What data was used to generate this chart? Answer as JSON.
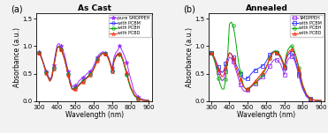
{
  "title_a": "As Cast",
  "title_b": "Annealed",
  "xlabel": "Wavelength (nm)",
  "ylabel": "Absorbance (a.u.)",
  "xlim": [
    285,
    920
  ],
  "ylim": [
    0,
    1.6
  ],
  "yticks": [
    0.0,
    0.5,
    1.0,
    1.5
  ],
  "xticks": [
    300,
    400,
    500,
    600,
    700,
    800,
    900
  ],
  "legend_a": [
    "pure SMDPPEH",
    "with PCBM",
    "with PCBH",
    "with PCBD"
  ],
  "legend_b": [
    "SMDPPEH",
    "with PCBM",
    "with PCBH",
    "with PCBD"
  ],
  "colors_a": [
    "#9B30FF",
    "#3333FF",
    "#00AA00",
    "#FF2200"
  ],
  "colors_b": [
    "#9B30FF",
    "#3333FF",
    "#00AA00",
    "#FF2200"
  ],
  "markers_a": [
    "*",
    "o",
    "o",
    "^"
  ],
  "markers_b": [
    "s",
    "s",
    "o",
    "^"
  ],
  "fillstyle_a": [
    "full",
    "none",
    "none",
    "none"
  ],
  "fillstyle_b": [
    "none",
    "none",
    "none",
    "none"
  ],
  "wl": [
    300,
    310,
    320,
    330,
    340,
    350,
    360,
    370,
    380,
    390,
    400,
    410,
    420,
    430,
    440,
    450,
    460,
    470,
    480,
    490,
    500,
    510,
    520,
    530,
    540,
    550,
    560,
    570,
    580,
    590,
    600,
    610,
    620,
    630,
    640,
    650,
    660,
    670,
    680,
    690,
    700,
    710,
    720,
    730,
    740,
    750,
    760,
    770,
    780,
    790,
    800,
    820,
    840,
    860,
    880,
    900
  ],
  "a_pure": [
    0.9,
    0.85,
    0.75,
    0.65,
    0.55,
    0.47,
    0.4,
    0.45,
    0.65,
    0.85,
    1.02,
    1.05,
    1.0,
    0.93,
    0.85,
    0.7,
    0.55,
    0.38,
    0.28,
    0.26,
    0.28,
    0.32,
    0.37,
    0.4,
    0.43,
    0.46,
    0.49,
    0.52,
    0.55,
    0.58,
    0.65,
    0.73,
    0.8,
    0.86,
    0.88,
    0.9,
    0.88,
    0.85,
    0.8,
    0.7,
    0.6,
    0.8,
    0.88,
    0.92,
    1.0,
    0.95,
    0.88,
    0.8,
    0.7,
    0.55,
    0.42,
    0.18,
    0.08,
    0.04,
    0.02,
    0.01
  ],
  "a_pcbm": [
    0.88,
    0.82,
    0.74,
    0.63,
    0.52,
    0.44,
    0.37,
    0.42,
    0.6,
    0.8,
    0.98,
    1.0,
    0.95,
    0.88,
    0.78,
    0.64,
    0.5,
    0.34,
    0.24,
    0.22,
    0.24,
    0.27,
    0.31,
    0.34,
    0.37,
    0.4,
    0.43,
    0.46,
    0.5,
    0.54,
    0.6,
    0.68,
    0.76,
    0.82,
    0.86,
    0.88,
    0.87,
    0.84,
    0.78,
    0.68,
    0.56,
    0.74,
    0.82,
    0.86,
    0.87,
    0.83,
    0.74,
    0.62,
    0.5,
    0.37,
    0.26,
    0.12,
    0.05,
    0.02,
    0.01,
    0.01
  ],
  "a_pcbh": [
    0.88,
    0.82,
    0.74,
    0.63,
    0.52,
    0.44,
    0.37,
    0.42,
    0.6,
    0.8,
    0.97,
    1.0,
    0.95,
    0.87,
    0.77,
    0.63,
    0.49,
    0.33,
    0.23,
    0.21,
    0.23,
    0.26,
    0.3,
    0.33,
    0.36,
    0.39,
    0.42,
    0.45,
    0.49,
    0.53,
    0.59,
    0.67,
    0.75,
    0.81,
    0.85,
    0.87,
    0.86,
    0.83,
    0.77,
    0.67,
    0.55,
    0.72,
    0.8,
    0.84,
    0.85,
    0.81,
    0.72,
    0.6,
    0.48,
    0.35,
    0.24,
    0.1,
    0.04,
    0.02,
    0.01,
    0.01
  ],
  "a_pcbd": [
    0.88,
    0.82,
    0.73,
    0.62,
    0.51,
    0.43,
    0.36,
    0.41,
    0.59,
    0.79,
    0.96,
    0.99,
    0.94,
    0.86,
    0.76,
    0.62,
    0.48,
    0.32,
    0.22,
    0.2,
    0.22,
    0.25,
    0.29,
    0.32,
    0.35,
    0.38,
    0.41,
    0.44,
    0.48,
    0.52,
    0.58,
    0.66,
    0.74,
    0.8,
    0.84,
    0.87,
    0.86,
    0.83,
    0.77,
    0.67,
    0.55,
    0.72,
    0.81,
    0.86,
    0.87,
    0.84,
    0.75,
    0.63,
    0.52,
    0.38,
    0.27,
    0.12,
    0.05,
    0.02,
    0.01,
    0.01
  ],
  "b_pure": [
    0.88,
    0.82,
    0.74,
    0.63,
    0.52,
    0.44,
    0.37,
    0.4,
    0.55,
    0.7,
    0.8,
    0.78,
    0.72,
    0.62,
    0.52,
    0.4,
    0.3,
    0.22,
    0.18,
    0.18,
    0.2,
    0.23,
    0.26,
    0.29,
    0.32,
    0.35,
    0.38,
    0.41,
    0.44,
    0.47,
    0.52,
    0.58,
    0.64,
    0.7,
    0.74,
    0.76,
    0.75,
    0.72,
    0.67,
    0.58,
    0.48,
    0.66,
    0.76,
    0.8,
    0.82,
    0.78,
    0.7,
    0.58,
    0.46,
    0.32,
    0.22,
    0.08,
    0.03,
    0.02,
    0.01,
    0.01
  ],
  "b_pcbm": [
    0.88,
    0.84,
    0.78,
    0.7,
    0.62,
    0.56,
    0.52,
    0.56,
    0.68,
    0.8,
    0.88,
    0.86,
    0.8,
    0.72,
    0.64,
    0.56,
    0.5,
    0.44,
    0.4,
    0.4,
    0.42,
    0.46,
    0.5,
    0.54,
    0.56,
    0.58,
    0.6,
    0.62,
    0.64,
    0.67,
    0.72,
    0.78,
    0.84,
    0.88,
    0.9,
    0.9,
    0.88,
    0.84,
    0.78,
    0.7,
    0.6,
    0.76,
    0.84,
    0.88,
    0.88,
    0.83,
    0.74,
    0.62,
    0.5,
    0.36,
    0.24,
    0.1,
    0.04,
    0.02,
    0.01,
    0.01
  ],
  "b_pcbh": [
    0.88,
    0.82,
    0.72,
    0.58,
    0.42,
    0.3,
    0.22,
    0.22,
    0.4,
    0.8,
    1.4,
    1.44,
    1.38,
    1.2,
    0.95,
    0.7,
    0.52,
    0.36,
    0.26,
    0.22,
    0.22,
    0.24,
    0.27,
    0.3,
    0.33,
    0.36,
    0.4,
    0.44,
    0.48,
    0.53,
    0.6,
    0.68,
    0.78,
    0.86,
    0.9,
    0.92,
    0.9,
    0.87,
    0.82,
    0.74,
    0.64,
    0.84,
    0.94,
    0.99,
    1.0,
    0.96,
    0.86,
    0.74,
    0.6,
    0.44,
    0.3,
    0.13,
    0.05,
    0.02,
    0.01,
    0.01
  ],
  "b_pcbd": [
    0.88,
    0.84,
    0.77,
    0.68,
    0.58,
    0.5,
    0.44,
    0.48,
    0.63,
    0.78,
    0.88,
    0.86,
    0.78,
    0.68,
    0.58,
    0.48,
    0.4,
    0.32,
    0.25,
    0.22,
    0.22,
    0.25,
    0.28,
    0.32,
    0.36,
    0.4,
    0.44,
    0.48,
    0.52,
    0.56,
    0.62,
    0.7,
    0.78,
    0.84,
    0.88,
    0.9,
    0.88,
    0.85,
    0.8,
    0.72,
    0.62,
    0.8,
    0.88,
    0.92,
    0.94,
    0.9,
    0.82,
    0.7,
    0.57,
    0.42,
    0.28,
    0.12,
    0.05,
    0.02,
    0.01,
    0.01
  ],
  "bg_color": "#f0f0f0"
}
